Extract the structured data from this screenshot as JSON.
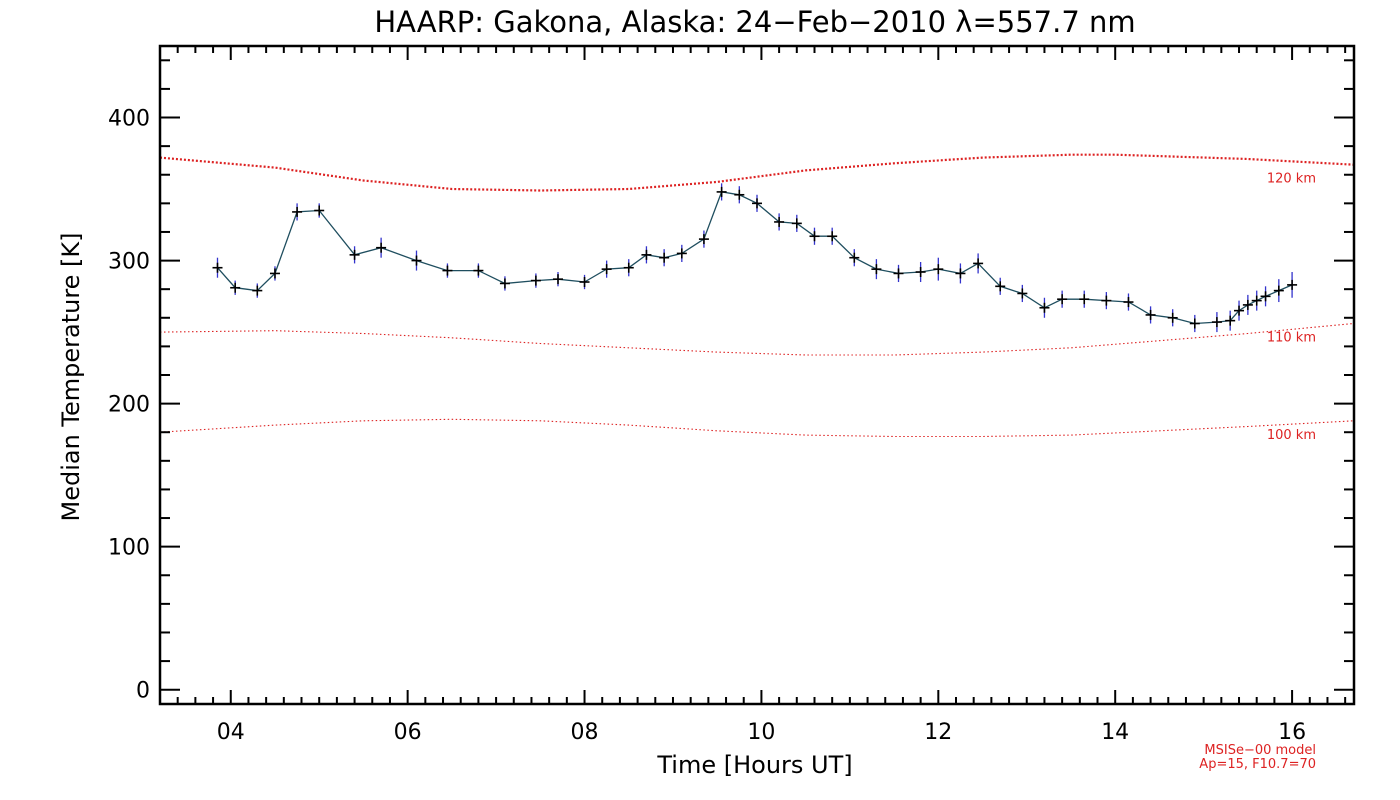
{
  "chart_data": {
    "type": "line",
    "title": "HAARP: Gakona,  Alaska: 24−Feb−2010 λ=557.7 nm",
    "xlabel": "Time [Hours UT]",
    "ylabel": "Median Temperature [K]",
    "xlim": [
      3.2,
      16.7
    ],
    "ylim": [
      -10,
      450
    ],
    "xticks": [
      4,
      6,
      8,
      10,
      12,
      14,
      16
    ],
    "xtick_labels": [
      "04",
      "06",
      "08",
      "10",
      "12",
      "14",
      "16"
    ],
    "yticks": [
      0,
      100,
      200,
      300,
      400
    ],
    "ytick_labels": [
      "0",
      "100",
      "200",
      "300",
      "400"
    ],
    "grid": false,
    "colors": {
      "data_marker": "#000000",
      "data_line": "#1f4e5f",
      "error_bar": "#3333cc",
      "model": "#dd2222",
      "model_note": "#dd2222"
    },
    "series": [
      {
        "x": [
          3.85,
          4.05,
          4.3,
          4.5,
          4.75,
          5.0,
          5.4,
          5.7,
          6.1,
          6.45,
          6.8,
          7.1,
          7.45,
          7.7,
          8.0,
          8.25,
          8.5,
          8.7,
          8.9,
          9.1,
          9.35,
          9.55,
          9.75,
          9.95,
          10.2,
          10.4,
          10.6,
          10.8,
          11.05,
          11.3,
          11.55,
          11.8,
          12.0,
          12.25,
          12.45,
          12.7,
          12.95,
          13.2,
          13.4,
          13.65,
          13.9,
          14.15,
          14.4,
          14.65,
          14.9,
          15.15,
          15.3,
          15.4,
          15.5,
          15.6,
          15.7,
          15.85,
          16.0
        ],
        "values": [
          295,
          281,
          279,
          291,
          334,
          335,
          304,
          309,
          300,
          293,
          293,
          284,
          286,
          287,
          285,
          294,
          295,
          304,
          302,
          305,
          315,
          348,
          346,
          340,
          327,
          326,
          317,
          317,
          302,
          294,
          291,
          292,
          294,
          291,
          298,
          282,
          277,
          267,
          273,
          273,
          272,
          271,
          262,
          260,
          256,
          257,
          258,
          265,
          269,
          272,
          275,
          279,
          283
        ],
        "errors": [
          7,
          5,
          5,
          5,
          6,
          5,
          6,
          7,
          7,
          5,
          5,
          5,
          5,
          5,
          5,
          6,
          6,
          6,
          6,
          6,
          6,
          6,
          6,
          6,
          6,
          6,
          6,
          6,
          6,
          7,
          6,
          7,
          8,
          7,
          7,
          6,
          6,
          7,
          6,
          6,
          6,
          6,
          6,
          6,
          6,
          7,
          7,
          7,
          7,
          7,
          7,
          8,
          9
        ]
      }
    ],
    "model_curves": [
      {
        "label": "120 km",
        "x": [
          3.2,
          4.5,
          5.5,
          6.5,
          7.5,
          8.5,
          9.5,
          10.5,
          11.5,
          12.5,
          13.5,
          14.0,
          14.5,
          15.5,
          16.7
        ],
        "values": [
          372,
          365,
          356,
          350,
          349,
          350,
          355,
          363,
          368,
          372,
          374,
          374,
          373,
          371,
          367
        ]
      },
      {
        "label": "110 km",
        "x": [
          3.2,
          4.5,
          5.5,
          6.5,
          7.5,
          8.5,
          9.5,
          10.5,
          11.5,
          12.5,
          13.5,
          14.5,
          15.5,
          16.7
        ],
        "values": [
          250,
          251,
          249,
          246,
          242,
          239,
          236,
          234,
          234,
          236,
          239,
          244,
          249,
          256
        ]
      },
      {
        "label": "100 km",
        "x": [
          3.2,
          4.5,
          5.5,
          6.5,
          7.5,
          8.5,
          9.5,
          10.5,
          11.5,
          12.5,
          13.5,
          14.5,
          15.5,
          16.7
        ],
        "values": [
          180,
          185,
          188,
          189,
          188,
          185,
          181,
          178,
          177,
          177,
          178,
          181,
          184,
          188
        ]
      }
    ],
    "model_note": [
      "MSISe−00 model",
      "Ap=15, F10.7=70"
    ]
  }
}
